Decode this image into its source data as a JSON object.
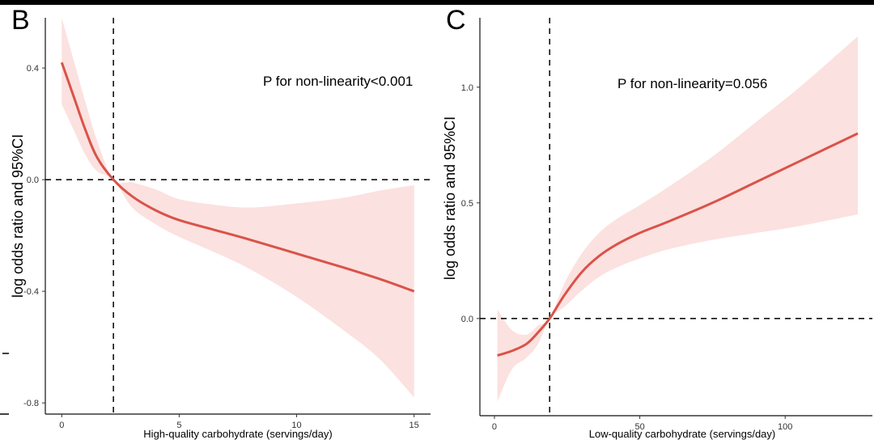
{
  "chart_data": [
    {
      "type": "line",
      "panel_label": "B",
      "annotation": "P for non-linearity<0.001",
      "xlabel": "High-quality carbohydrate (servings/day)",
      "ylabel": "log odds ratio and 95%CI",
      "xlim": [
        -0.7,
        15.7
      ],
      "ylim": [
        -0.84,
        0.58
      ],
      "xticks": [
        0,
        5,
        10,
        15
      ],
      "xtick_labels": [
        "0",
        "5",
        "10",
        "15"
      ],
      "yticks": [
        -0.8,
        -0.4,
        0.0,
        0.4
      ],
      "ytick_labels": [
        "-0.8",
        "-0.4",
        "0.0",
        "0.4"
      ],
      "reference_y": 0,
      "reference_x": 2.2,
      "series": [
        {
          "name": "estimate",
          "x": [
            0,
            0.5,
            1.0,
            1.5,
            2.2,
            3.0,
            4.0,
            5.0,
            6.5,
            8.0,
            10.0,
            12.0,
            13.5,
            15.0
          ],
          "y": [
            0.42,
            0.3,
            0.18,
            0.08,
            0.0,
            -0.06,
            -0.11,
            -0.145,
            -0.18,
            -0.215,
            -0.265,
            -0.315,
            -0.355,
            -0.4
          ],
          "lower": [
            0.27,
            0.18,
            0.09,
            0.03,
            0.0,
            -0.1,
            -0.16,
            -0.205,
            -0.26,
            -0.32,
            -0.42,
            -0.54,
            -0.64,
            -0.78
          ],
          "upper": [
            0.58,
            0.43,
            0.28,
            0.14,
            0.0,
            -0.01,
            -0.035,
            -0.07,
            -0.09,
            -0.1,
            -0.085,
            -0.065,
            -0.04,
            -0.02
          ]
        }
      ],
      "colors": {
        "line": "#d9534a",
        "band": "#fbe1df"
      }
    },
    {
      "type": "line",
      "panel_label": "C",
      "annotation": "P for non-linearity=0.056",
      "xlabel": "Low-quality carbohydrate (servings/day)",
      "ylabel": "log odds ratio and 95%CI",
      "xlim": [
        -5,
        130
      ],
      "ylim": [
        -0.42,
        1.3
      ],
      "xticks": [
        0,
        50,
        100
      ],
      "xtick_labels": [
        "0",
        "50",
        "100"
      ],
      "yticks": [
        0.0,
        0.5,
        1.0
      ],
      "ytick_labels": [
        "0.0",
        "0.5",
        "1.0"
      ],
      "reference_y": 0,
      "reference_x": 19,
      "series": [
        {
          "name": "estimate",
          "x": [
            1,
            6,
            11,
            15,
            19,
            24,
            30,
            36,
            42,
            50,
            60,
            75,
            90,
            105,
            125
          ],
          "y": [
            -0.16,
            -0.14,
            -0.11,
            -0.06,
            0.0,
            0.1,
            0.2,
            0.27,
            0.32,
            0.37,
            0.42,
            0.5,
            0.59,
            0.68,
            0.8
          ],
          "lower": [
            -0.36,
            -0.22,
            -0.17,
            -0.11,
            0.0,
            0.05,
            0.12,
            0.18,
            0.22,
            0.26,
            0.3,
            0.34,
            0.37,
            0.4,
            0.45
          ],
          "upper": [
            0.04,
            -0.05,
            -0.07,
            -0.03,
            0.0,
            0.15,
            0.28,
            0.37,
            0.43,
            0.49,
            0.57,
            0.7,
            0.85,
            1.0,
            1.22
          ]
        }
      ],
      "colors": {
        "line": "#d9534a",
        "band": "#fbe1df"
      }
    }
  ]
}
